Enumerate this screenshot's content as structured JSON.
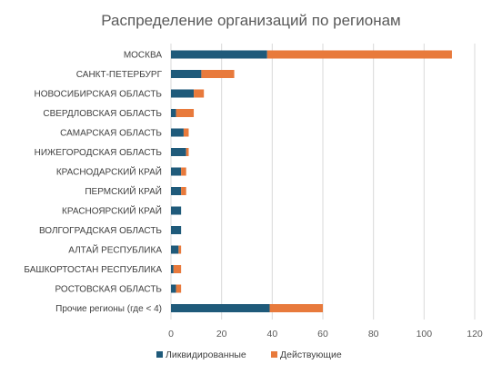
{
  "chart_data": {
    "type": "bar",
    "orientation": "horizontal",
    "stacked": true,
    "title": "Распределение организаций по регионам",
    "xlabel": "",
    "ylabel": "",
    "xlim": [
      0,
      120
    ],
    "x_ticks": [
      0,
      20,
      40,
      60,
      80,
      100,
      120
    ],
    "grid": true,
    "legend_position": "bottom",
    "categories": [
      "МОСКВА",
      "САНКТ-ПЕТЕРБУРГ",
      "НОВОСИБИРСКАЯ ОБЛАСТЬ",
      "СВЕРДЛОВСКАЯ ОБЛАСТЬ",
      "САМАРСКАЯ ОБЛАСТЬ",
      "НИЖЕГОРОДСКАЯ ОБЛАСТЬ",
      "КРАСНОДАРСКИЙ КРАЙ",
      "ПЕРМСКИЙ КРАЙ",
      "КРАСНОЯРСКИЙ КРАЙ",
      "ВОЛГОГРАДСКАЯ ОБЛАСТЬ",
      "АЛТАЙ РЕСПУБЛИКА",
      "БАШКОРТОСТАН РЕСПУБЛИКА",
      "РОСТОВСКАЯ ОБЛАСТЬ",
      "Прочие регионы (где < 4)"
    ],
    "series": [
      {
        "name": "Ликвидированные",
        "color": "#1f5a7a",
        "values": [
          38,
          12,
          9,
          2,
          5,
          6,
          4,
          4,
          4,
          4,
          3,
          1,
          2,
          39
        ]
      },
      {
        "name": "Действующие",
        "color": "#e87a3c",
        "values": [
          73,
          13,
          4,
          7,
          2,
          1,
          2,
          2,
          0,
          0,
          1,
          3,
          2,
          21
        ]
      }
    ]
  }
}
